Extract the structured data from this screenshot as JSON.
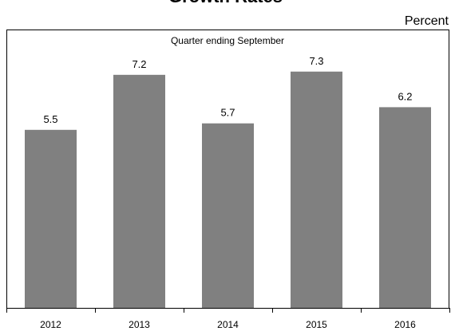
{
  "chart_data": {
    "type": "bar",
    "title": "Growth Rates",
    "unit_label": "Percent",
    "subtitle": "Quarter ending September",
    "categories": [
      "2012",
      "2013",
      "2014",
      "2015",
      "2016"
    ],
    "values": [
      5.5,
      7.2,
      5.7,
      7.3,
      6.2
    ],
    "data_labels": [
      "5.5",
      "7.2",
      "5.7",
      "7.3",
      "6.2"
    ],
    "ylim": [
      0,
      8.6
    ],
    "grid": false,
    "legend": "none",
    "bar_color": "#808080"
  }
}
